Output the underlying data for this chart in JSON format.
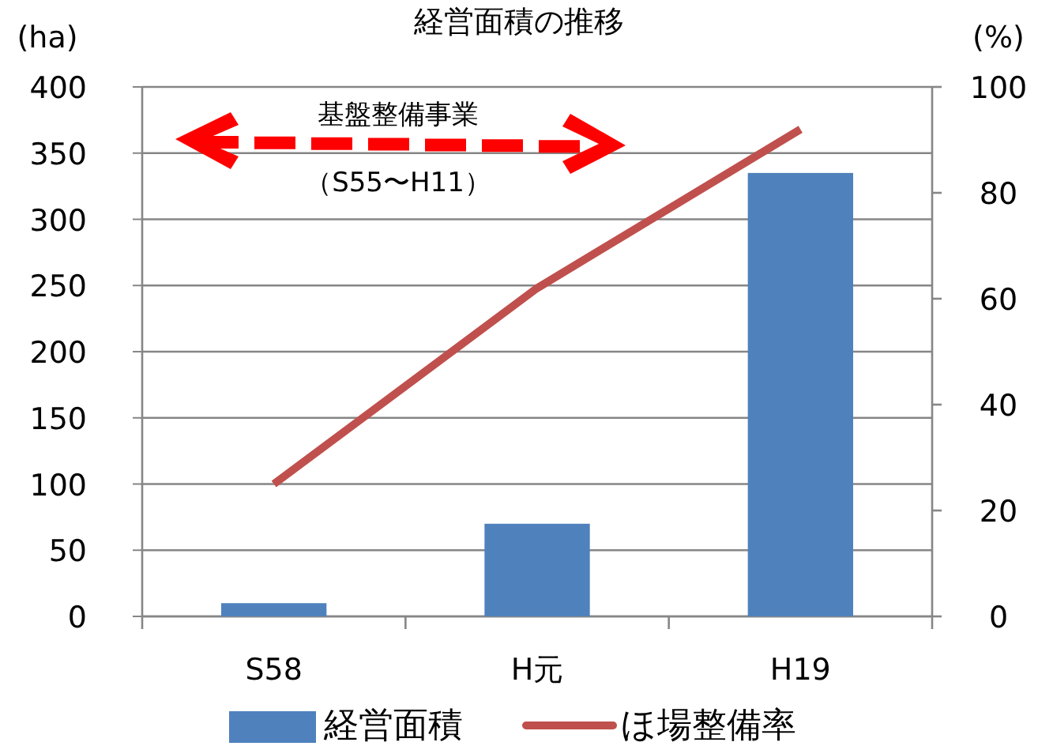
{
  "chart_data": {
    "type": "bar",
    "title": "経営面積の推移",
    "ylabel": "(ha)",
    "y2label": "(%)",
    "categories": [
      "S58",
      "H元",
      "H19"
    ],
    "series": [
      {
        "name": "経営面積",
        "color": "#4f81bd",
        "values": [
          10,
          70,
          335
        ]
      },
      {
        "name": "ほ場整備率",
        "type": "line",
        "axis": "y2",
        "color": "#c0504d",
        "values": [
          25,
          62,
          92
        ]
      }
    ],
    "ylim": [
      0,
      400
    ],
    "yticks": [
      0,
      50,
      100,
      150,
      200,
      250,
      300,
      350,
      400
    ],
    "y2lim": [
      0,
      100
    ],
    "y2ticks": [
      0,
      20,
      40,
      60,
      80,
      100
    ],
    "grid": "y",
    "legend": "bottom",
    "marker": "none",
    "line_style": "solid",
    "annotations": [
      "基盤整備事業",
      "（S55〜H11）"
    ]
  }
}
